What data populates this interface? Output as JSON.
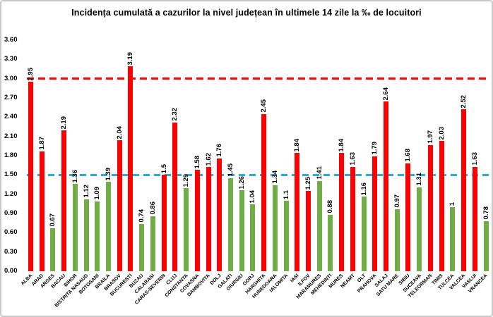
{
  "chart_data": {
    "type": "bar",
    "title": "Incidența cumulată a cazurilor la nivel județean în ultimele 14 zile la ‰ de locuitori",
    "xlabel": "",
    "ylabel": "",
    "ylim": [
      0,
      3.6
    ],
    "grid": "off",
    "legend": "none",
    "y_ticks": [
      "0.00",
      "0.30",
      "0.60",
      "0.90",
      "1.20",
      "1.50",
      "1.80",
      "2.10",
      "2.40",
      "2.70",
      "3.00",
      "3.30",
      "3.60"
    ],
    "categories": [
      "ALBA",
      "ARAD",
      "ARGES",
      "BACAU",
      "BIHOR",
      "BISTRITA NASAUD",
      "BOTOSANI",
      "BRAILA",
      "BRASOV",
      "BUCURESTI",
      "BUZAU",
      "CALARASI",
      "CARAS-SEVERIN",
      "CLUJ",
      "CONSTANTA",
      "COVASNA",
      "DAMBOVITA",
      "DOLJ",
      "GALATI",
      "GIURGIU",
      "GORJ",
      "HARGHITA",
      "HUNEDOARA",
      "IALOMITA",
      "IASI",
      "ILFOV",
      "MARAMURES",
      "MEHEDINTI",
      "MURES",
      "NEAMT",
      "OLT",
      "PRAHOVA",
      "SALAJ",
      "SATU MARE",
      "SIBIU",
      "SUCEAVA",
      "TELEORMAN",
      "TIMIS",
      "TULCEA",
      "VALCEA",
      "VASLUI",
      "VRANCEA"
    ],
    "values": [
      2.95,
      1.87,
      0.67,
      2.19,
      1.36,
      1.12,
      1.09,
      1.39,
      2.04,
      3.19,
      0.74,
      0.86,
      1.5,
      2.32,
      1.29,
      1.58,
      1.62,
      1.76,
      1.45,
      1.26,
      1.04,
      2.45,
      1.34,
      1.1,
      1.84,
      1.25,
      1.41,
      0.88,
      1.84,
      1.63,
      1.16,
      1.79,
      2.64,
      0.97,
      1.68,
      1.31,
      1.97,
      2.03,
      1,
      2.52,
      1.63,
      0.78
    ],
    "value_labels": [
      "2.95",
      "1.87",
      "0.67",
      "2.19",
      "1.36",
      "1.12",
      "1.09",
      "1.39",
      "2.04",
      "3.19",
      "0.74",
      "0.86",
      "1.5",
      "2.32",
      "1.29",
      "1.58",
      "1.62",
      "1.76",
      "1.45",
      "1.26",
      "1.04",
      "2.45",
      "1.34",
      "1.1",
      "1.84",
      "1.25",
      "1.41",
      "0.88",
      "1.84",
      "1.63",
      "1.16",
      "1.79",
      "2.64",
      "0.97",
      "1.68",
      "1.31",
      "1.97",
      "2.03",
      "1",
      "2.52",
      "1.63",
      "0.78"
    ],
    "bar_colors": [
      "red",
      "red",
      "green",
      "red",
      "green",
      "green",
      "green",
      "green",
      "red",
      "red",
      "green",
      "green",
      "red",
      "red",
      "green",
      "red",
      "red",
      "red",
      "green",
      "green",
      "green",
      "red",
      "green",
      "green",
      "red",
      "red",
      "green",
      "green",
      "red",
      "red",
      "green",
      "red",
      "red",
      "green",
      "red",
      "green",
      "red",
      "red",
      "green",
      "red",
      "red",
      "green"
    ],
    "palette": {
      "red": "#FE0000",
      "green": "#70AD47"
    },
    "reference_lines": [
      {
        "name": "threshold-line-red-3",
        "value": 3.0,
        "color": "#FF0000",
        "dash": 10,
        "gap": 6
      },
      {
        "name": "threshold-line-blue-1-5",
        "value": 1.5,
        "color": "#29ABE2",
        "dash": 9,
        "gap": 6
      }
    ]
  }
}
